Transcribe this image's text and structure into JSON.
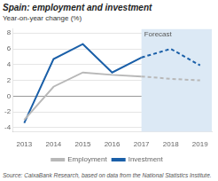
{
  "chart_data": {
    "type": "line",
    "title": "Spain: employment and investment",
    "ylabel": "Year-on-year change (%)",
    "annotations": [
      {
        "text": "Forecast",
        "x": 2017,
        "color": "#dce9f5"
      },
      {
        "text": "Source: CaixaBank Research, based on data from the National Statistics Institute."
      }
    ],
    "x": [
      2013,
      2014,
      2015,
      2016,
      2017,
      2018,
      2019
    ],
    "series": [
      {
        "name": "Employment",
        "color": "#b8b8b8",
        "values": [
          -3.0,
          1.2,
          3.0,
          2.7,
          2.5,
          2.2,
          2.0
        ]
      },
      {
        "name": "Investment",
        "color": "#1a5fa8",
        "values": [
          -3.4,
          4.7,
          6.6,
          3.0,
          4.9,
          6.0,
          3.9
        ]
      }
    ],
    "xlim": [
      2012.6,
      2019.4
    ],
    "ylim": [
      -4.5,
      8.5
    ],
    "xticks": [
      2013,
      2014,
      2015,
      2016,
      2017,
      2018,
      2019
    ],
    "yticks": [
      -4,
      -2,
      0,
      2,
      4,
      6,
      8
    ],
    "grid": true,
    "legend": "bottom"
  }
}
